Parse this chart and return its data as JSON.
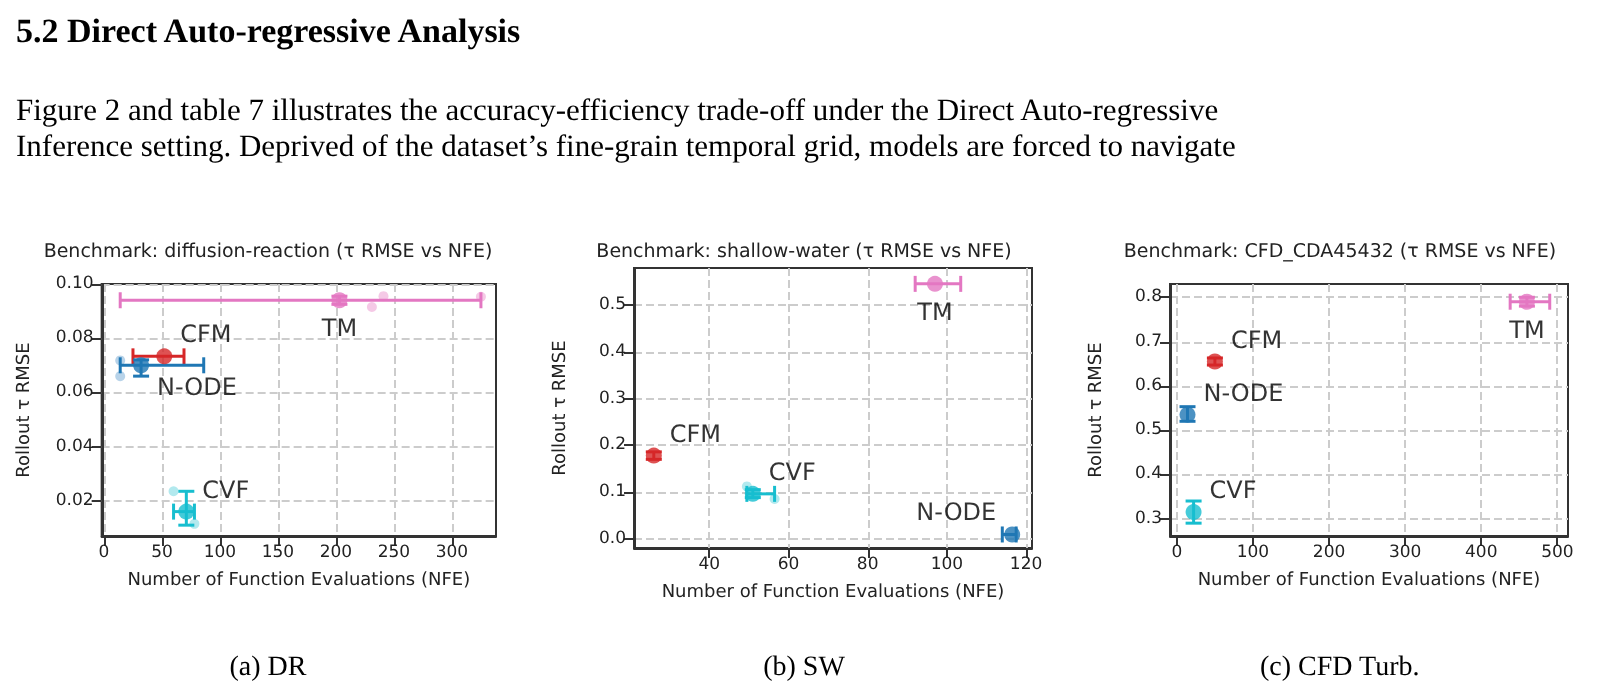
{
  "chart_data": [
    {
      "type": "other",
      "title": "5.2 Direct Auto-regressive Analysis",
      "annotations": [
        "Figure 2 and table 7 illustrates the accuracy-efficiency trade-off under the Direct Auto-regressive",
        "Inference setting. Deprived of the dataset’s fine-grain temporal grid, models are forced to navigate"
      ]
    },
    {
      "type": "scatter",
      "title": "Benchmark: diffusion-reaction (τ RMSE vs NFE)",
      "xlabel": "Number of Function Evaluations (NFE)",
      "ylabel": "Rollout τ RMSE",
      "annotations": [
        "(a) DR"
      ],
      "xlim": [
        -2,
        338
      ],
      "xticks": [
        0,
        50,
        100,
        150,
        200,
        250,
        300
      ],
      "ylim": [
        0.007,
        0.1
      ],
      "yticks": [
        {
          "value": 0.02,
          "label": "0.02"
        },
        {
          "value": 0.04,
          "label": "0.04"
        },
        {
          "value": 0.06,
          "label": "0.06"
        },
        {
          "value": 0.08,
          "label": "0.08"
        },
        {
          "value": 0.1,
          "label": "0.10"
        }
      ],
      "grid": true,
      "marker": "circle",
      "series": [
        {
          "color": "#f3bbe0",
          "x": [
            241,
            231,
            325
          ],
          "values": [
            0.0955,
            0.0915,
            0.0953
          ]
        },
        {
          "name": "TM",
          "color": "#e377c2",
          "x": [
            203
          ],
          "values": [
            0.094
          ],
          "errors": [
            [
              0.0925,
              0.0955
            ]
          ],
          "xerrors": [
            [
              14,
              325
            ]
          ]
        },
        {
          "name": "CFM",
          "color": "#d62728",
          "x": [
            52
          ],
          "values": [
            0.0733
          ],
          "xerrors": [
            [
              25,
              69
            ]
          ]
        },
        {
          "color": "#a6c8e4",
          "x": [
            14,
            14
          ],
          "values": [
            0.0718,
            0.066
          ]
        },
        {
          "name": "N-ODE",
          "color": "#1f77b4",
          "x": [
            32
          ],
          "values": [
            0.07
          ],
          "errors": [
            [
              0.066,
              0.072
            ]
          ],
          "xerrors": [
            [
              14,
              86
            ]
          ]
        },
        {
          "color": "#9fe3ea",
          "x": [
            60,
            78
          ],
          "values": [
            0.0235,
            0.0115
          ]
        },
        {
          "name": "CVF",
          "color": "#17becf",
          "x": [
            71
          ],
          "values": [
            0.016
          ],
          "errors": [
            [
              0.011,
              0.0235
            ]
          ],
          "xerrors": [
            [
              60,
              78
            ]
          ]
        }
      ]
    },
    {
      "type": "scatter",
      "title": "Benchmark: shallow-water (τ RMSE vs NFE)",
      "xlabel": "Number of Function Evaluations (NFE)",
      "ylabel": "Rollout τ RMSE",
      "annotations": [
        "(b) SW"
      ],
      "xlim": [
        21,
        121.5
      ],
      "xticks": [
        40,
        60,
        80,
        100,
        120
      ],
      "ylim": [
        -0.02,
        0.58
      ],
      "yticks": [
        {
          "value": 0,
          "label": "0.0"
        },
        0.1,
        0.2,
        0.3,
        0.4,
        0.5
      ],
      "grid": true,
      "marker": "circle",
      "series": [
        {
          "name": "TM",
          "color": "#e377c2",
          "x": [
            97
          ],
          "values": [
            0.546
          ],
          "xerrors": [
            [
              92,
              103.5
            ]
          ]
        },
        {
          "name": "CFM",
          "color": "#d62728",
          "x": [
            26
          ],
          "values": [
            0.178
          ],
          "errors": [
            [
              0.17,
              0.186
            ]
          ]
        },
        {
          "color": "#9fe3ea",
          "x": [
            49.5,
            56.5
          ],
          "values": [
            0.112,
            0.085
          ]
        },
        {
          "name": "CVF",
          "color": "#17becf",
          "x": [
            51
          ],
          "values": [
            0.096
          ],
          "errors": [
            [
              0.088,
              0.105
            ]
          ],
          "xerrors": [
            [
              49.5,
              56.5
            ]
          ]
        },
        {
          "name": "N-ODE",
          "color": "#1f77b4",
          "x": [
            116.5
          ],
          "values": [
            0.009
          ],
          "xerrors": [
            [
              114,
              117.5
            ]
          ]
        }
      ]
    },
    {
      "type": "scatter",
      "title": "Benchmark: CFD_CDA45432 (τ RMSE vs NFE)",
      "xlabel": "Number of Function Evaluations (NFE)",
      "ylabel": "Rollout τ RMSE",
      "annotations": [
        "(c) CFD Turb."
      ],
      "xlim": [
        -9,
        514
      ],
      "xticks": [
        0,
        100,
        200,
        300,
        400,
        500
      ],
      "ylim": [
        0.261,
        0.83
      ],
      "yticks": [
        0.3,
        0.4,
        0.5,
        0.6,
        0.7,
        0.8
      ],
      "grid": true,
      "marker": "circle",
      "series": [
        {
          "name": "TM",
          "color": "#e377c2",
          "x": [
            460
          ],
          "values": [
            0.79
          ],
          "errors": [
            [
              0.78,
              0.8
            ]
          ],
          "xerrors": [
            [
              438,
              490
            ]
          ]
        },
        {
          "name": "CFM",
          "color": "#d62728",
          "x": [
            50
          ],
          "values": [
            0.655
          ],
          "errors": [
            [
              0.647,
              0.663
            ]
          ]
        },
        {
          "name": "N-ODE",
          "color": "#1f77b4",
          "x": [
            14
          ],
          "values": [
            0.535
          ],
          "errors": [
            [
              0.52,
              0.553
            ]
          ]
        },
        {
          "name": "CVF",
          "color": "#17becf",
          "x": [
            22
          ],
          "values": [
            0.315
          ],
          "errors": [
            [
              0.29,
              0.34
            ]
          ]
        }
      ]
    }
  ]
}
